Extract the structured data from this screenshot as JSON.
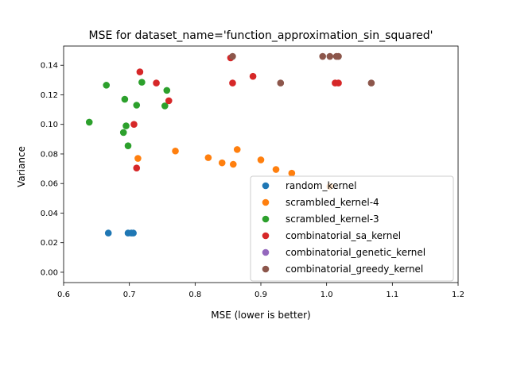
{
  "chart_data": {
    "type": "scatter",
    "title": "MSE for dataset_name='function_approximation_sin_squared'",
    "xlabel": "MSE (lower is better)",
    "ylabel": "Variance",
    "xlim": [
      0.6,
      1.2
    ],
    "ylim": [
      -0.007,
      0.153
    ],
    "x_ticks": [
      0.6,
      0.7,
      0.8,
      0.9,
      1.0,
      1.1,
      1.2
    ],
    "x_tick_labels": [
      "0.6",
      "0.7",
      "0.8",
      "0.9",
      "1.0",
      "1.1",
      "1.2"
    ],
    "y_ticks": [
      0.0,
      0.02,
      0.04,
      0.06,
      0.08,
      0.1,
      0.12,
      0.14
    ],
    "y_tick_labels": [
      "0.00",
      "0.02",
      "0.04",
      "0.06",
      "0.08",
      "0.10",
      "0.12",
      "0.14"
    ],
    "grid": false,
    "legend_position": "lower right",
    "series": [
      {
        "name": "random_kernel",
        "color": "#1f77b4",
        "points": [
          [
            0.668,
            0.0265
          ],
          [
            0.698,
            0.0265
          ],
          [
            0.703,
            0.0265
          ],
          [
            0.706,
            0.0265
          ]
        ]
      },
      {
        "name": "scrambled_kernel-4",
        "color": "#ff7f0e",
        "points": [
          [
            0.713,
            0.077
          ],
          [
            0.77,
            0.082
          ],
          [
            0.82,
            0.0775
          ],
          [
            0.841,
            0.074
          ],
          [
            0.858,
            0.073
          ],
          [
            0.864,
            0.083
          ],
          [
            0.9,
            0.076
          ],
          [
            0.923,
            0.0695
          ],
          [
            0.947,
            0.067
          ],
          [
            1.005,
            0.058
          ]
        ]
      },
      {
        "name": "scrambled_kernel-3",
        "color": "#2ca02c",
        "points": [
          [
            0.639,
            0.1015
          ],
          [
            0.665,
            0.1265
          ],
          [
            0.691,
            0.0945
          ],
          [
            0.693,
            0.117
          ],
          [
            0.695,
            0.099
          ],
          [
            0.698,
            0.0855
          ],
          [
            0.711,
            0.113
          ],
          [
            0.719,
            0.1285
          ],
          [
            0.754,
            0.1125
          ],
          [
            0.757,
            0.123
          ]
        ]
      },
      {
        "name": "combinatorial_sa_kernel",
        "color": "#d62728",
        "points": [
          [
            0.707,
            0.1
          ],
          [
            0.711,
            0.0705
          ],
          [
            0.716,
            0.1355
          ],
          [
            0.741,
            0.128
          ],
          [
            0.76,
            0.116
          ],
          [
            0.854,
            0.145
          ],
          [
            0.857,
            0.128
          ],
          [
            0.888,
            0.1325
          ],
          [
            1.013,
            0.128
          ],
          [
            1.018,
            0.128
          ]
        ]
      },
      {
        "name": "combinatorial_genetic_kernel",
        "color": "#9467bd",
        "points": []
      },
      {
        "name": "combinatorial_greedy_kernel",
        "color": "#8c564b",
        "points": [
          [
            0.857,
            0.146
          ],
          [
            0.93,
            0.128
          ],
          [
            0.994,
            0.146
          ],
          [
            1.005,
            0.146
          ],
          [
            1.015,
            0.146
          ],
          [
            1.018,
            0.146
          ],
          [
            1.068,
            0.128
          ]
        ]
      }
    ]
  }
}
